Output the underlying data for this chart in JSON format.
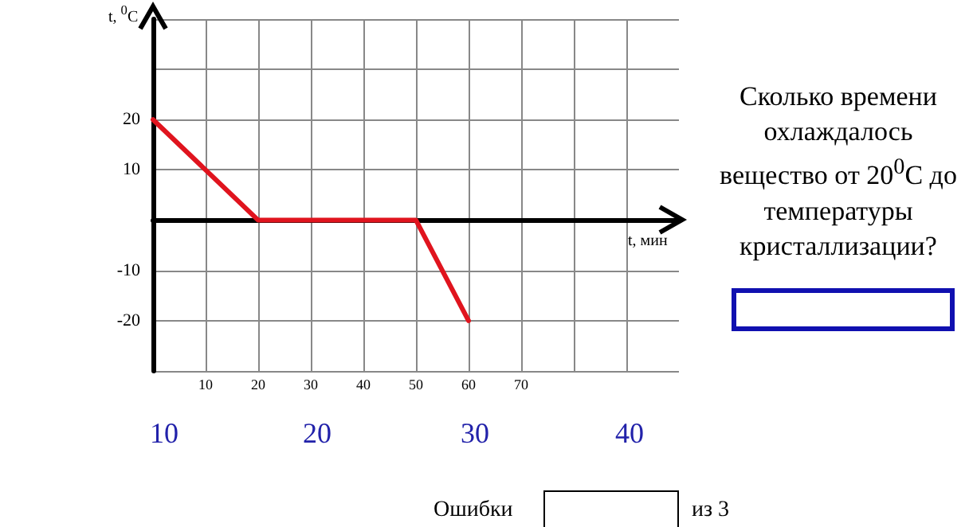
{
  "chart_data": {
    "type": "line",
    "xlabel": "t, мин",
    "ylabel": "t, $^{0}$C",
    "x": [
      0,
      20,
      50,
      60
    ],
    "series": [
      {
        "color": "#e0141e",
        "values": [
          20,
          0,
          0,
          -20
        ]
      }
    ],
    "xlim": [
      0,
      100
    ],
    "xticks": [
      {
        "value": 0,
        "label": null
      },
      10,
      20,
      30,
      40,
      50,
      60,
      70,
      {
        "value": 80,
        "label": null
      },
      {
        "value": 90,
        "label": null
      }
    ],
    "ylim": [
      -30,
      40
    ],
    "yticks": [
      {
        "value": -30,
        "label": null
      },
      -20,
      -10,
      {
        "value": 0,
        "label": null
      },
      10,
      20,
      {
        "value": 30,
        "label": null
      },
      {
        "value": 40,
        "label": null
      }
    ],
    "grid": true,
    "marker": "none",
    "line_style": "solid",
    "annotations": [
      "Сколько времени охлаждалось вещество от 20$^{0}$C до температуры кристаллизации?",
      "10",
      "20",
      "30",
      "40",
      "Ошибки",
      "из 3"
    ]
  }
}
